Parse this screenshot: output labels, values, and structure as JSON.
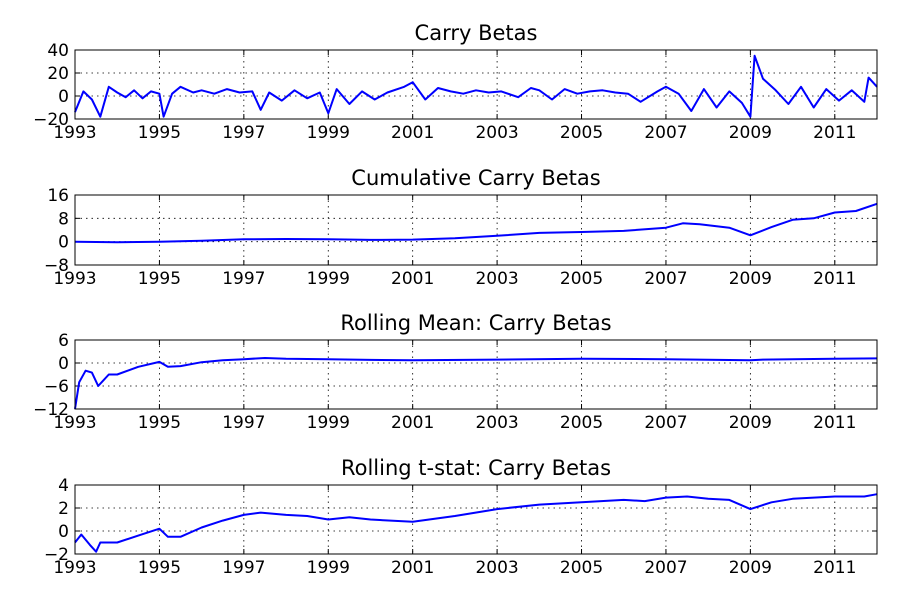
{
  "chart_data": [
    {
      "type": "line",
      "title": "Carry Betas",
      "xlabel": "",
      "ylabel": "",
      "xlim": [
        1993,
        2012
      ],
      "ylim": [
        -20,
        40
      ],
      "xticks": [
        "1993",
        "1995",
        "1997",
        "1999",
        "2001",
        "2003",
        "2005",
        "2007",
        "2009",
        "2011"
      ],
      "yticks": [
        "40",
        "20",
        "0",
        "−20"
      ],
      "grid": true,
      "series": [
        {
          "color": "#0000ff",
          "x": [
            1993.0,
            1993.2,
            1993.4,
            1993.6,
            1993.8,
            1994.0,
            1994.2,
            1994.4,
            1994.6,
            1994.8,
            1995.0,
            1995.1,
            1995.3,
            1995.5,
            1995.8,
            1996.0,
            1996.3,
            1996.6,
            1996.9,
            1997.2,
            1997.4,
            1997.6,
            1997.9,
            1998.2,
            1998.5,
            1998.8,
            1999.0,
            1999.2,
            1999.5,
            1999.8,
            2000.1,
            2000.4,
            2000.8,
            2001.0,
            2001.3,
            2001.6,
            2001.9,
            2002.2,
            2002.5,
            2002.8,
            2003.1,
            2003.5,
            2003.8,
            2004.0,
            2004.3,
            2004.6,
            2004.9,
            2005.2,
            2005.5,
            2005.8,
            2006.1,
            2006.4,
            2006.8,
            2007.0,
            2007.3,
            2007.6,
            2007.9,
            2008.2,
            2008.5,
            2008.8,
            2009.0,
            2009.1,
            2009.3,
            2009.6,
            2009.9,
            2010.2,
            2010.5,
            2010.8,
            2011.1,
            2011.4,
            2011.7,
            2011.8,
            2012.0
          ],
          "y": [
            -14,
            4,
            -3,
            -18,
            8,
            3,
            -1,
            5,
            -2,
            4,
            2,
            -18,
            2,
            8,
            3,
            5,
            2,
            6,
            3,
            4,
            -12,
            3,
            -4,
            5,
            -2,
            3,
            -15,
            6,
            -7,
            4,
            -3,
            3,
            8,
            12,
            -3,
            7,
            4,
            2,
            5,
            3,
            4,
            -1,
            7,
            5,
            -3,
            6,
            2,
            4,
            5,
            3,
            2,
            -5,
            4,
            8,
            2,
            -13,
            6,
            -10,
            4,
            -6,
            -18,
            35,
            15,
            5,
            -7,
            8,
            -10,
            6,
            -4,
            5,
            -5,
            16,
            8
          ]
        }
      ]
    },
    {
      "type": "line",
      "title": "Cumulative Carry Betas",
      "xlabel": "",
      "ylabel": "",
      "xlim": [
        1993,
        2012
      ],
      "ylim": [
        -8,
        16
      ],
      "xticks": [
        "1993",
        "1995",
        "1997",
        "1999",
        "2001",
        "2003",
        "2005",
        "2007",
        "2009",
        "2011"
      ],
      "yticks": [
        "16",
        "8",
        "0",
        "−8"
      ],
      "grid": true,
      "series": [
        {
          "color": "#0000ff",
          "x": [
            1993.0,
            1994.0,
            1995.0,
            1996.0,
            1997.0,
            1998.0,
            1999.0,
            2000.0,
            2001.0,
            2002.0,
            2003.0,
            2004.0,
            2005.0,
            2006.0,
            2007.0,
            2007.4,
            2007.8,
            2008.5,
            2009.0,
            2009.5,
            2010.0,
            2010.5,
            2011.0,
            2011.5,
            2012.0
          ],
          "y": [
            0,
            -0.2,
            0,
            0.3,
            0.8,
            0.9,
            0.8,
            0.6,
            0.7,
            1.2,
            2.0,
            3.0,
            3.3,
            3.7,
            4.8,
            6.3,
            6.0,
            4.8,
            2.2,
            5.0,
            7.5,
            8.0,
            10.0,
            10.5,
            13.0
          ]
        }
      ]
    },
    {
      "type": "line",
      "title": "Rolling Mean: Carry Betas",
      "xlabel": "",
      "ylabel": "",
      "xlim": [
        1993,
        2012
      ],
      "ylim": [
        -12,
        6
      ],
      "xticks": [
        "1993",
        "1995",
        "1997",
        "1999",
        "2001",
        "2003",
        "2005",
        "2007",
        "2009",
        "2011"
      ],
      "yticks": [
        "6",
        "0",
        "−6",
        "−12"
      ],
      "grid": true,
      "series": [
        {
          "color": "#0000ff",
          "x": [
            1993.0,
            1993.1,
            1993.25,
            1993.4,
            1993.55,
            1993.8,
            1994.0,
            1994.5,
            1995.0,
            1995.2,
            1995.5,
            1996.0,
            1996.5,
            1997.0,
            1997.5,
            1998.0,
            1999.0,
            2000.0,
            2001.0,
            2003.0,
            2005.0,
            2007.0,
            2009.0,
            2009.3,
            2010.0,
            2011.0,
            2012.0
          ],
          "y": [
            -12,
            -5,
            -2,
            -2.5,
            -6,
            -3,
            -3,
            -1,
            0.3,
            -1,
            -0.8,
            0.2,
            0.7,
            1.0,
            1.3,
            1.1,
            1.0,
            0.8,
            0.7,
            0.9,
            1.1,
            1.0,
            0.7,
            0.9,
            1.0,
            1.1,
            1.2
          ]
        }
      ]
    },
    {
      "type": "line",
      "title": "Rolling t-stat: Carry Betas",
      "xlabel": "",
      "ylabel": "",
      "xlim": [
        1993,
        2012
      ],
      "ylim": [
        -2,
        4
      ],
      "xticks": [
        "1993",
        "1995",
        "1997",
        "1999",
        "2001",
        "2003",
        "2005",
        "2007",
        "2009",
        "2011"
      ],
      "yticks": [
        "4",
        "2",
        "0",
        "−2"
      ],
      "grid": true,
      "series": [
        {
          "color": "#0000ff",
          "x": [
            1993.0,
            1993.15,
            1993.35,
            1993.5,
            1993.6,
            1994.0,
            1994.5,
            1995.0,
            1995.2,
            1995.5,
            1996.0,
            1996.5,
            1997.0,
            1997.4,
            1998.0,
            1998.5,
            1999.0,
            1999.5,
            2000.0,
            2001.0,
            2002.0,
            2003.0,
            2004.0,
            2005.0,
            2006.0,
            2006.5,
            2007.0,
            2007.5,
            2008.0,
            2008.5,
            2009.0,
            2009.5,
            2010.0,
            2011.0,
            2011.7,
            2012.0
          ],
          "y": [
            -1,
            -0.3,
            -1.2,
            -1.8,
            -1.0,
            -1.0,
            -0.4,
            0.2,
            -0.5,
            -0.5,
            0.3,
            0.9,
            1.4,
            1.6,
            1.4,
            1.3,
            1.0,
            1.2,
            1.0,
            0.8,
            1.3,
            1.9,
            2.3,
            2.5,
            2.7,
            2.6,
            2.9,
            3.0,
            2.8,
            2.7,
            1.9,
            2.5,
            2.8,
            3.0,
            3.0,
            3.2
          ]
        }
      ]
    }
  ]
}
